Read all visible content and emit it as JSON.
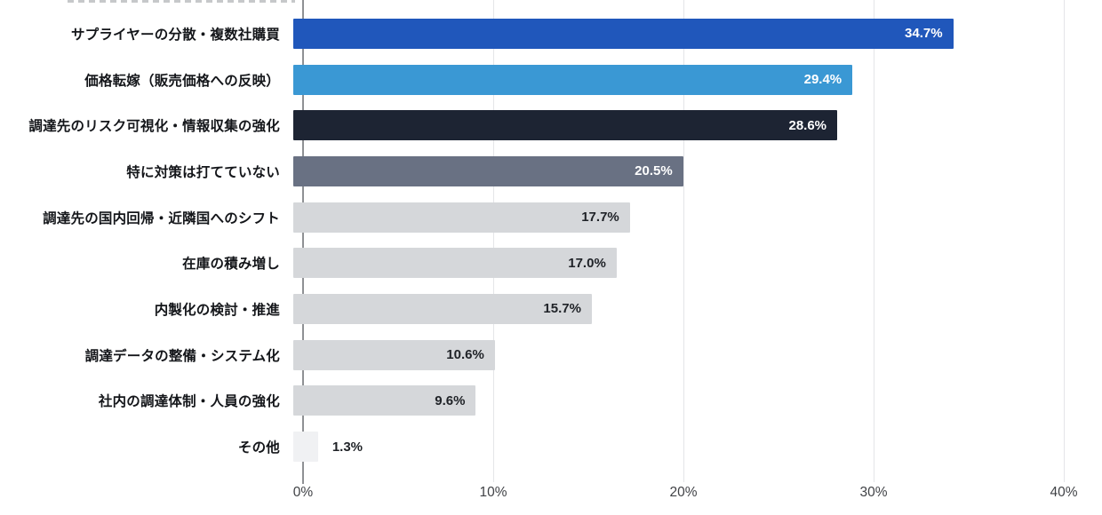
{
  "chart_data": {
    "type": "bar",
    "orientation": "horizontal",
    "title": "",
    "xlabel": "",
    "ylabel": "",
    "categories": [
      "サプライヤーの分散・複数社購買",
      "価格転嫁（販売価格への反映）",
      "調達先のリスク可視化・情報収集の強化",
      "特に対策は打てていない",
      "調達先の国内回帰・近隣国へのシフト",
      "在庫の積み増し",
      "内製化の検討・推進",
      "調達データの整備・システム化",
      "社内の調達体制・人員の強化",
      "その他"
    ],
    "values": [
      34.7,
      29.4,
      28.6,
      20.5,
      17.7,
      17.0,
      15.7,
      10.6,
      9.6,
      1.3
    ],
    "value_labels": [
      "34.7%",
      "29.4%",
      "28.6%",
      "20.5%",
      "17.7%",
      "17.0%",
      "15.7%",
      "10.6%",
      "9.6%",
      "1.3%"
    ],
    "bar_colors": [
      "#2057bb",
      "#3a98d4",
      "#1d2433",
      "#697183",
      "#d5d7da",
      "#d5d7da",
      "#d5d7da",
      "#d5d7da",
      "#d5d7da",
      "#f0f1f3"
    ],
    "value_label_colors": [
      "#ffffff",
      "#ffffff",
      "#ffffff",
      "#ffffff",
      "#1f2227",
      "#1f2227",
      "#1f2227",
      "#1f2227",
      "#1f2227",
      "#1f2227"
    ],
    "x_ticks": [
      "0%",
      "10%",
      "20%",
      "30%",
      "40%"
    ],
    "x_tick_values": [
      0,
      10,
      20,
      30,
      40
    ],
    "xlim": [
      0,
      40
    ],
    "grid": "vertical",
    "legend": "none",
    "colors": {
      "grid": "#e4e5e8",
      "axis": "#8f9194",
      "category_text": "#14161a",
      "tick_text": "#404246",
      "background": "#ffffff"
    }
  }
}
